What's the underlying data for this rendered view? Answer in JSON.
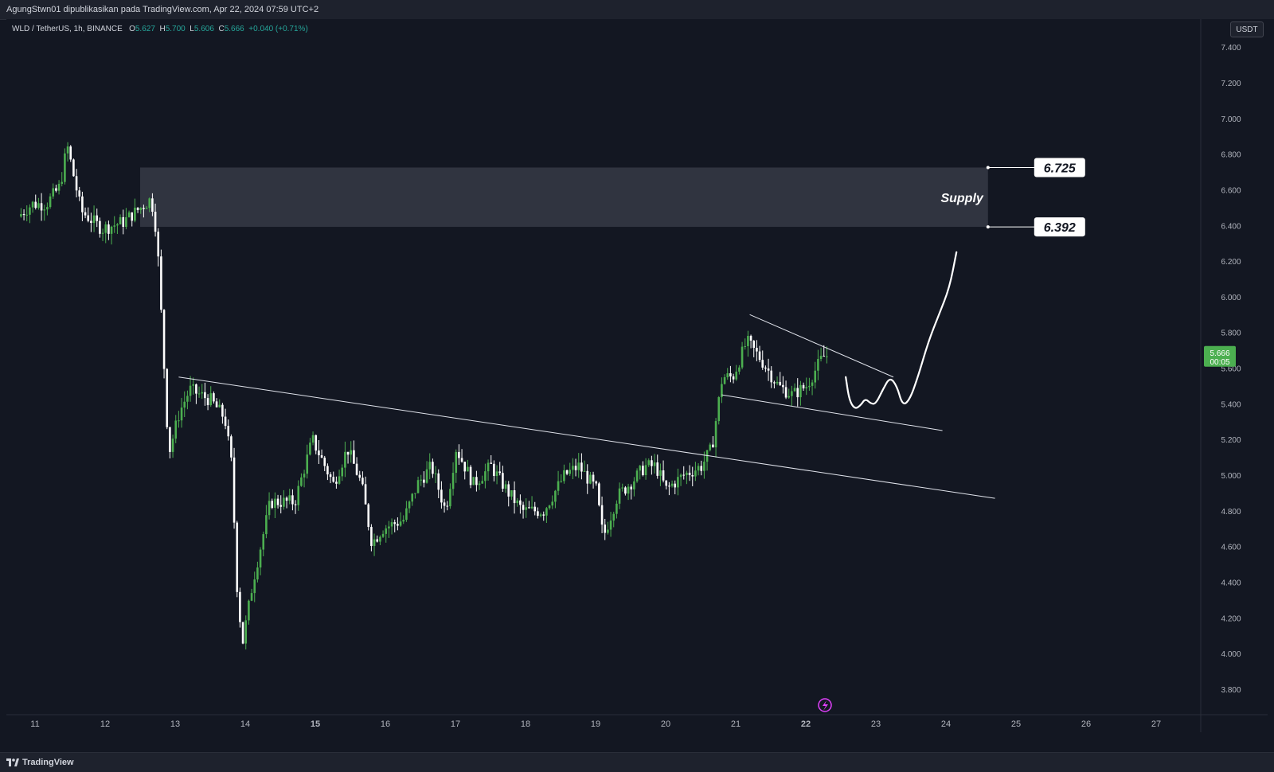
{
  "header": {
    "publish_text": "AgungStwn01 dipublikasikan pada TradingView.com, Apr 22, 2024 07:59 UTC+2"
  },
  "legend": {
    "symbol": "WLD / TetherUS, 1h, BINANCE",
    "o_label": "O",
    "o_value": "5.627",
    "h_label": "H",
    "h_value": "5.700",
    "l_label": "L",
    "l_value": "5.606",
    "c_label": "C",
    "c_value": "5.666",
    "change": "+0.040 (+0.71%)"
  },
  "currency_button": "USDT",
  "footer": {
    "brand": "TradingView"
  },
  "colors": {
    "background": "#131722",
    "up_candle": "#4caf50",
    "down_candle": "#ffffff",
    "zone": "#363a45",
    "price_tag": "#4caf50"
  },
  "chart_data": {
    "type": "candlestick",
    "price_axis": {
      "ticks": [
        "7.400",
        "7.200",
        "7.000",
        "6.800",
        "6.600",
        "6.400",
        "6.200",
        "6.000",
        "5.800",
        "5.600",
        "5.400",
        "5.200",
        "5.000",
        "4.800",
        "4.600",
        "4.400",
        "4.200",
        "4.000",
        "3.800"
      ],
      "range": [
        3.7,
        7.5
      ]
    },
    "time_axis": {
      "ticks": [
        {
          "label": "11",
          "day": 11
        },
        {
          "label": "12",
          "day": 12
        },
        {
          "label": "13",
          "day": 13
        },
        {
          "label": "14",
          "day": 14
        },
        {
          "label": "15",
          "day": 15,
          "bold": true
        },
        {
          "label": "16",
          "day": 16
        },
        {
          "label": "17",
          "day": 17
        },
        {
          "label": "18",
          "day": 18
        },
        {
          "label": "19",
          "day": 19
        },
        {
          "label": "20",
          "day": 20
        },
        {
          "label": "21",
          "day": 21
        },
        {
          "label": "22",
          "day": 22,
          "bold": true
        },
        {
          "label": "23",
          "day": 23
        },
        {
          "label": "24",
          "day": 24
        },
        {
          "label": "25",
          "day": 25
        },
        {
          "label": "26",
          "day": 26
        },
        {
          "label": "27",
          "day": 27
        }
      ]
    },
    "last_price": {
      "value": "5.666",
      "countdown": "00:05"
    },
    "supply_zone": {
      "label": "Supply",
      "top": 6.725,
      "bottom": 6.392,
      "top_label": "6.725",
      "bottom_label": "6.392",
      "from_day": 12.5,
      "to_day": 24.6
    },
    "trendlines": [
      {
        "from": [
          13.05,
          5.55
        ],
        "to": [
          24.7,
          4.87
        ]
      },
      {
        "from": [
          21.2,
          5.9
        ],
        "to": [
          23.25,
          5.55
        ]
      },
      {
        "from": [
          20.8,
          5.45
        ],
        "to": [
          23.95,
          5.25
        ]
      }
    ],
    "projection_path": [
      [
        22.57,
        5.55
      ],
      [
        22.62,
        5.42
      ],
      [
        22.7,
        5.37
      ],
      [
        22.78,
        5.39
      ],
      [
        22.85,
        5.43
      ],
      [
        22.93,
        5.4
      ],
      [
        23.0,
        5.4
      ],
      [
        23.1,
        5.48
      ],
      [
        23.2,
        5.55
      ],
      [
        23.3,
        5.5
      ],
      [
        23.38,
        5.39
      ],
      [
        23.48,
        5.42
      ],
      [
        23.6,
        5.55
      ],
      [
        23.75,
        5.75
      ],
      [
        23.9,
        5.9
      ],
      [
        24.05,
        6.05
      ],
      [
        24.15,
        6.25
      ]
    ],
    "candle_anchors": [
      [
        10.8,
        6.45
      ],
      [
        11.0,
        6.52
      ],
      [
        11.2,
        6.52
      ],
      [
        11.4,
        6.62
      ],
      [
        11.5,
        6.85
      ],
      [
        11.7,
        6.48
      ],
      [
        12.0,
        6.38
      ],
      [
        12.3,
        6.42
      ],
      [
        12.55,
        6.5
      ],
      [
        12.7,
        6.55
      ],
      [
        12.78,
        6.35
      ],
      [
        12.85,
        5.85
      ],
      [
        12.95,
        5.12
      ],
      [
        13.1,
        5.35
      ],
      [
        13.25,
        5.48
      ],
      [
        13.55,
        5.42
      ],
      [
        13.75,
        5.32
      ],
      [
        13.85,
        5.05
      ],
      [
        13.92,
        4.4
      ],
      [
        14.0,
        4.05
      ],
      [
        14.15,
        4.4
      ],
      [
        14.4,
        4.85
      ],
      [
        14.75,
        4.85
      ],
      [
        15.0,
        5.2
      ],
      [
        15.3,
        4.95
      ],
      [
        15.5,
        5.15
      ],
      [
        15.7,
        4.95
      ],
      [
        15.85,
        4.62
      ],
      [
        16.0,
        4.7
      ],
      [
        16.3,
        4.75
      ],
      [
        16.5,
        4.95
      ],
      [
        16.7,
        5.05
      ],
      [
        16.9,
        4.8
      ],
      [
        17.05,
        5.15
      ],
      [
        17.3,
        4.95
      ],
      [
        17.55,
        5.05
      ],
      [
        17.8,
        4.9
      ],
      [
        18.0,
        4.8
      ],
      [
        18.3,
        4.8
      ],
      [
        18.6,
        5.0
      ],
      [
        18.8,
        5.05
      ],
      [
        19.05,
        4.92
      ],
      [
        19.15,
        4.65
      ],
      [
        19.35,
        4.88
      ],
      [
        19.6,
        4.98
      ],
      [
        19.75,
        5.05
      ],
      [
        19.9,
        5.05
      ],
      [
        20.05,
        4.92
      ],
      [
        20.3,
        5.0
      ],
      [
        20.55,
        5.05
      ],
      [
        20.7,
        5.15
      ],
      [
        20.85,
        5.55
      ],
      [
        21.0,
        5.55
      ],
      [
        21.2,
        5.75
      ],
      [
        21.4,
        5.65
      ],
      [
        21.65,
        5.5
      ],
      [
        21.85,
        5.45
      ],
      [
        22.05,
        5.5
      ],
      [
        22.25,
        5.64
      ],
      [
        22.3,
        5.666
      ]
    ]
  }
}
